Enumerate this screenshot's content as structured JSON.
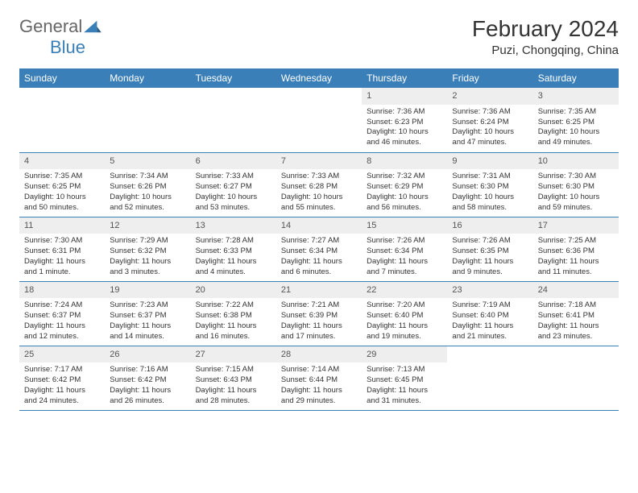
{
  "brand": {
    "general": "General",
    "blue": "Blue"
  },
  "title": "February 2024",
  "location": "Puzi, Chongqing, China",
  "colors": {
    "header_bg": "#3b7fb8",
    "header_text": "#ffffff",
    "daynum_bg": "#eeeeee",
    "border": "#3b7fb8",
    "text": "#333333"
  },
  "weekdays": [
    "Sunday",
    "Monday",
    "Tuesday",
    "Wednesday",
    "Thursday",
    "Friday",
    "Saturday"
  ],
  "weeks": [
    [
      null,
      null,
      null,
      null,
      {
        "n": "1",
        "sr": "Sunrise: 7:36 AM",
        "ss": "Sunset: 6:23 PM",
        "dl": "Daylight: 10 hours and 46 minutes."
      },
      {
        "n": "2",
        "sr": "Sunrise: 7:36 AM",
        "ss": "Sunset: 6:24 PM",
        "dl": "Daylight: 10 hours and 47 minutes."
      },
      {
        "n": "3",
        "sr": "Sunrise: 7:35 AM",
        "ss": "Sunset: 6:25 PM",
        "dl": "Daylight: 10 hours and 49 minutes."
      }
    ],
    [
      {
        "n": "4",
        "sr": "Sunrise: 7:35 AM",
        "ss": "Sunset: 6:25 PM",
        "dl": "Daylight: 10 hours and 50 minutes."
      },
      {
        "n": "5",
        "sr": "Sunrise: 7:34 AM",
        "ss": "Sunset: 6:26 PM",
        "dl": "Daylight: 10 hours and 52 minutes."
      },
      {
        "n": "6",
        "sr": "Sunrise: 7:33 AM",
        "ss": "Sunset: 6:27 PM",
        "dl": "Daylight: 10 hours and 53 minutes."
      },
      {
        "n": "7",
        "sr": "Sunrise: 7:33 AM",
        "ss": "Sunset: 6:28 PM",
        "dl": "Daylight: 10 hours and 55 minutes."
      },
      {
        "n": "8",
        "sr": "Sunrise: 7:32 AM",
        "ss": "Sunset: 6:29 PM",
        "dl": "Daylight: 10 hours and 56 minutes."
      },
      {
        "n": "9",
        "sr": "Sunrise: 7:31 AM",
        "ss": "Sunset: 6:30 PM",
        "dl": "Daylight: 10 hours and 58 minutes."
      },
      {
        "n": "10",
        "sr": "Sunrise: 7:30 AM",
        "ss": "Sunset: 6:30 PM",
        "dl": "Daylight: 10 hours and 59 minutes."
      }
    ],
    [
      {
        "n": "11",
        "sr": "Sunrise: 7:30 AM",
        "ss": "Sunset: 6:31 PM",
        "dl": "Daylight: 11 hours and 1 minute."
      },
      {
        "n": "12",
        "sr": "Sunrise: 7:29 AM",
        "ss": "Sunset: 6:32 PM",
        "dl": "Daylight: 11 hours and 3 minutes."
      },
      {
        "n": "13",
        "sr": "Sunrise: 7:28 AM",
        "ss": "Sunset: 6:33 PM",
        "dl": "Daylight: 11 hours and 4 minutes."
      },
      {
        "n": "14",
        "sr": "Sunrise: 7:27 AM",
        "ss": "Sunset: 6:34 PM",
        "dl": "Daylight: 11 hours and 6 minutes."
      },
      {
        "n": "15",
        "sr": "Sunrise: 7:26 AM",
        "ss": "Sunset: 6:34 PM",
        "dl": "Daylight: 11 hours and 7 minutes."
      },
      {
        "n": "16",
        "sr": "Sunrise: 7:26 AM",
        "ss": "Sunset: 6:35 PM",
        "dl": "Daylight: 11 hours and 9 minutes."
      },
      {
        "n": "17",
        "sr": "Sunrise: 7:25 AM",
        "ss": "Sunset: 6:36 PM",
        "dl": "Daylight: 11 hours and 11 minutes."
      }
    ],
    [
      {
        "n": "18",
        "sr": "Sunrise: 7:24 AM",
        "ss": "Sunset: 6:37 PM",
        "dl": "Daylight: 11 hours and 12 minutes."
      },
      {
        "n": "19",
        "sr": "Sunrise: 7:23 AM",
        "ss": "Sunset: 6:37 PM",
        "dl": "Daylight: 11 hours and 14 minutes."
      },
      {
        "n": "20",
        "sr": "Sunrise: 7:22 AM",
        "ss": "Sunset: 6:38 PM",
        "dl": "Daylight: 11 hours and 16 minutes."
      },
      {
        "n": "21",
        "sr": "Sunrise: 7:21 AM",
        "ss": "Sunset: 6:39 PM",
        "dl": "Daylight: 11 hours and 17 minutes."
      },
      {
        "n": "22",
        "sr": "Sunrise: 7:20 AM",
        "ss": "Sunset: 6:40 PM",
        "dl": "Daylight: 11 hours and 19 minutes."
      },
      {
        "n": "23",
        "sr": "Sunrise: 7:19 AM",
        "ss": "Sunset: 6:40 PM",
        "dl": "Daylight: 11 hours and 21 minutes."
      },
      {
        "n": "24",
        "sr": "Sunrise: 7:18 AM",
        "ss": "Sunset: 6:41 PM",
        "dl": "Daylight: 11 hours and 23 minutes."
      }
    ],
    [
      {
        "n": "25",
        "sr": "Sunrise: 7:17 AM",
        "ss": "Sunset: 6:42 PM",
        "dl": "Daylight: 11 hours and 24 minutes."
      },
      {
        "n": "26",
        "sr": "Sunrise: 7:16 AM",
        "ss": "Sunset: 6:42 PM",
        "dl": "Daylight: 11 hours and 26 minutes."
      },
      {
        "n": "27",
        "sr": "Sunrise: 7:15 AM",
        "ss": "Sunset: 6:43 PM",
        "dl": "Daylight: 11 hours and 28 minutes."
      },
      {
        "n": "28",
        "sr": "Sunrise: 7:14 AM",
        "ss": "Sunset: 6:44 PM",
        "dl": "Daylight: 11 hours and 29 minutes."
      },
      {
        "n": "29",
        "sr": "Sunrise: 7:13 AM",
        "ss": "Sunset: 6:45 PM",
        "dl": "Daylight: 11 hours and 31 minutes."
      },
      null,
      null
    ]
  ]
}
